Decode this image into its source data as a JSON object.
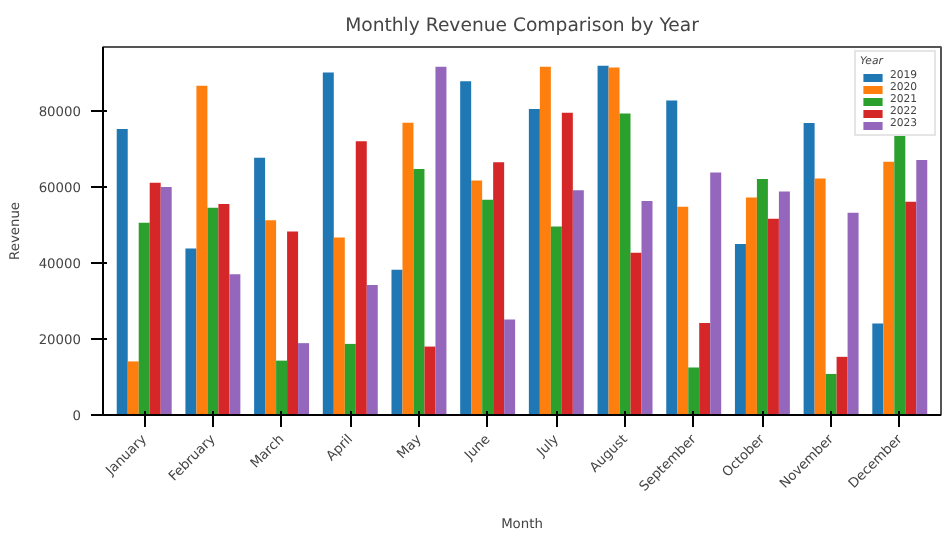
{
  "chart_data": {
    "type": "bar",
    "title": "Monthly Revenue Comparison by Year",
    "xlabel": "Month",
    "ylabel": "Revenue",
    "legend_title": "Year",
    "legend": "top right",
    "grid": false,
    "categories": [
      "January",
      "February",
      "March",
      "April",
      "May",
      "June",
      "July",
      "August",
      "September",
      "October",
      "November",
      "December"
    ],
    "ylim": [
      0,
      96800
    ],
    "yticks": [
      0,
      20000,
      40000,
      60000,
      80000
    ],
    "series": [
      {
        "name": "2019",
        "color": "#1f77b4",
        "values": [
          75200,
          43800,
          67700,
          90100,
          38200,
          87800,
          80500,
          91900,
          82700,
          45000,
          76800,
          24100
        ]
      },
      {
        "name": "2020",
        "color": "#ff7f0e",
        "values": [
          14100,
          86600,
          51200,
          46700,
          76900,
          61700,
          91600,
          91400,
          54800,
          57200,
          62200,
          66600
        ]
      },
      {
        "name": "2021",
        "color": "#2ca02c",
        "values": [
          50600,
          54500,
          14300,
          18700,
          64700,
          56600,
          49600,
          79300,
          12500,
          62100,
          10800,
          73500
        ]
      },
      {
        "name": "2022",
        "color": "#d62728",
        "values": [
          61100,
          55500,
          48300,
          72000,
          18000,
          66500,
          79500,
          42700,
          24200,
          51600,
          15300,
          56100
        ]
      },
      {
        "name": "2023",
        "color": "#9467bd",
        "values": [
          60000,
          37000,
          18900,
          34200,
          91600,
          25100,
          59100,
          56300,
          63800,
          58800,
          53200,
          67100
        ]
      }
    ]
  }
}
